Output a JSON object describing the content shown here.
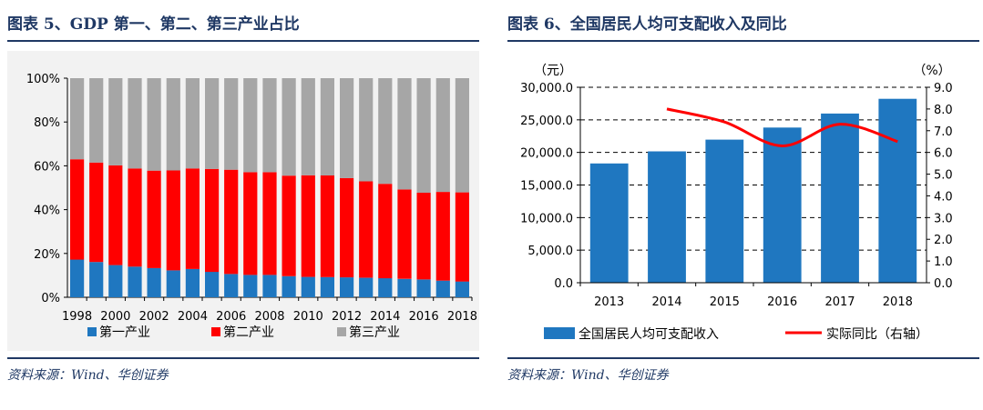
{
  "left": {
    "title": "图表 5、GDP 第一、第二、第三产业占比",
    "source": "资料来源：Wind、华创证券"
  },
  "right": {
    "title": "图表 6、全国居民人均可支配收入及同比",
    "source": "资料来源：Wind、华创证券"
  },
  "chart_data": [
    {
      "type": "bar",
      "stacked": true,
      "title": "",
      "xlabel": "",
      "ylabel": "",
      "ylim": [
        0,
        100
      ],
      "y_ticks": [
        "0%",
        "20%",
        "40%",
        "60%",
        "80%",
        "100%"
      ],
      "categories": [
        "1998",
        "1999",
        "2000",
        "2001",
        "2002",
        "2003",
        "2004",
        "2005",
        "2006",
        "2007",
        "2008",
        "2009",
        "2010",
        "2011",
        "2012",
        "2013",
        "2014",
        "2015",
        "2016",
        "2017",
        "2018"
      ],
      "x_tick_labels": [
        "1998",
        "2000",
        "2002",
        "2004",
        "2006",
        "2008",
        "2010",
        "2012",
        "2014",
        "2016",
        "2018"
      ],
      "series": [
        {
          "name": "第一产业",
          "color": "#1f77c0",
          "values": [
            17.2,
            16.1,
            14.7,
            14.0,
            13.3,
            12.3,
            12.9,
            11.6,
            10.6,
            10.2,
            10.2,
            9.6,
            9.3,
            9.2,
            9.1,
            8.9,
            8.7,
            8.4,
            8.1,
            7.6,
            7.2
          ]
        },
        {
          "name": "第二产业",
          "color": "#ff0000",
          "values": [
            45.8,
            45.4,
            45.5,
            44.8,
            44.5,
            45.6,
            45.9,
            47.0,
            47.6,
            46.9,
            46.9,
            45.9,
            46.4,
            46.4,
            45.3,
            44.0,
            43.1,
            40.8,
            39.6,
            40.5,
            40.7
          ]
        },
        {
          "name": "第三产业",
          "color": "#a6a6a6",
          "values": [
            37.0,
            38.5,
            39.8,
            41.2,
            42.2,
            42.1,
            41.2,
            41.4,
            41.8,
            42.9,
            42.9,
            44.5,
            44.3,
            44.4,
            45.6,
            47.1,
            48.2,
            50.8,
            52.3,
            51.9,
            52.1
          ]
        }
      ],
      "legend": "bottom",
      "grid": false
    },
    {
      "type": "bar",
      "title": "",
      "categories": [
        "2013",
        "2014",
        "2015",
        "2016",
        "2017",
        "2018"
      ],
      "y_unit_left": "（元）",
      "y_unit_right": "（%）",
      "ylim": [
        0,
        30000
      ],
      "ylim_right": [
        0,
        9
      ],
      "y_ticks": [
        "0.0",
        "5,000.0",
        "10,000.0",
        "15,000.0",
        "20,000.0",
        "25,000.0",
        "30,000.0"
      ],
      "y_ticks_right": [
        "0.0",
        "1.0",
        "2.0",
        "3.0",
        "4.0",
        "5.0",
        "6.0",
        "7.0",
        "8.0",
        "9.0"
      ],
      "series": [
        {
          "name": "全国居民人均可支配收入",
          "type": "bar",
          "axis": "left",
          "color": "#1f77c0",
          "values": [
            18311,
            20167,
            21966,
            23821,
            25974,
            28228
          ]
        },
        {
          "name": "实际同比（右轴）",
          "type": "line",
          "axis": "right",
          "color": "#ff0000",
          "x": [
            "2014",
            "2015",
            "2016",
            "2017",
            "2018"
          ],
          "values": [
            8.0,
            7.4,
            6.3,
            7.3,
            6.5
          ]
        }
      ],
      "grid": "dashed horizontal",
      "legend": "bottom"
    }
  ]
}
